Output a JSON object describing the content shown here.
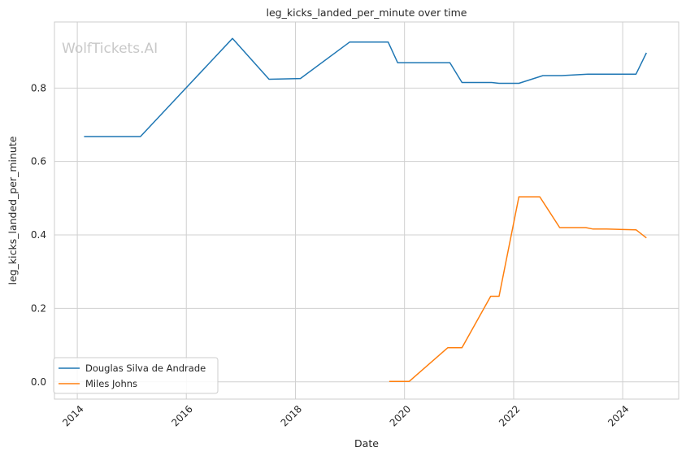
{
  "watermark": "WolfTickets.AI",
  "chart_data": {
    "type": "line",
    "title": "leg_kicks_landed_per_minute over time",
    "xlabel": "Date",
    "ylabel": "leg_kicks_landed_per_minute",
    "xlim": [
      "2013-08-01",
      "2025-01-10"
    ],
    "ylim": [
      -0.047,
      0.98
    ],
    "x_ticks": [
      "2014",
      "2016",
      "2018",
      "2020",
      "2022",
      "2024"
    ],
    "y_ticks": [
      "0.0",
      "0.2",
      "0.4",
      "0.6",
      "0.8"
    ],
    "grid": true,
    "legend_position": "bottom-left",
    "series": [
      {
        "name": "Douglas Silva de Andrade",
        "color": "#1f77b4",
        "points": [
          {
            "date": "2014-02-15",
            "value": 0.668
          },
          {
            "date": "2015-02-28",
            "value": 0.668
          },
          {
            "date": "2016-11-05",
            "value": 0.935
          },
          {
            "date": "2017-07-08",
            "value": 0.824
          },
          {
            "date": "2018-02-03",
            "value": 0.826
          },
          {
            "date": "2018-12-29",
            "value": 0.925
          },
          {
            "date": "2019-09-14",
            "value": 0.925
          },
          {
            "date": "2019-11-16",
            "value": 0.869
          },
          {
            "date": "2020-10-31",
            "value": 0.869
          },
          {
            "date": "2021-01-20",
            "value": 0.815
          },
          {
            "date": "2021-08-07",
            "value": 0.815
          },
          {
            "date": "2021-09-25",
            "value": 0.813
          },
          {
            "date": "2022-02-05",
            "value": 0.813
          },
          {
            "date": "2022-07-16",
            "value": 0.834
          },
          {
            "date": "2022-11-19",
            "value": 0.834
          },
          {
            "date": "2023-05-13",
            "value": 0.838
          },
          {
            "date": "2024-03-30",
            "value": 0.838
          },
          {
            "date": "2024-06-08",
            "value": 0.896
          }
        ]
      },
      {
        "name": "Miles Johns",
        "color": "#ff7f0e",
        "points": [
          {
            "date": "2019-09-21",
            "value": 0.001
          },
          {
            "date": "2020-02-01",
            "value": 0.001
          },
          {
            "date": "2020-10-17",
            "value": 0.093
          },
          {
            "date": "2021-01-20",
            "value": 0.093
          },
          {
            "date": "2021-07-31",
            "value": 0.233
          },
          {
            "date": "2021-09-25",
            "value": 0.233
          },
          {
            "date": "2022-02-05",
            "value": 0.504
          },
          {
            "date": "2022-06-25",
            "value": 0.504
          },
          {
            "date": "2022-11-05",
            "value": 0.42
          },
          {
            "date": "2023-04-29",
            "value": 0.42
          },
          {
            "date": "2023-06-17",
            "value": 0.416
          },
          {
            "date": "2023-09-16",
            "value": 0.416
          },
          {
            "date": "2024-03-30",
            "value": 0.414
          },
          {
            "date": "2024-06-08",
            "value": 0.392
          }
        ]
      }
    ]
  }
}
